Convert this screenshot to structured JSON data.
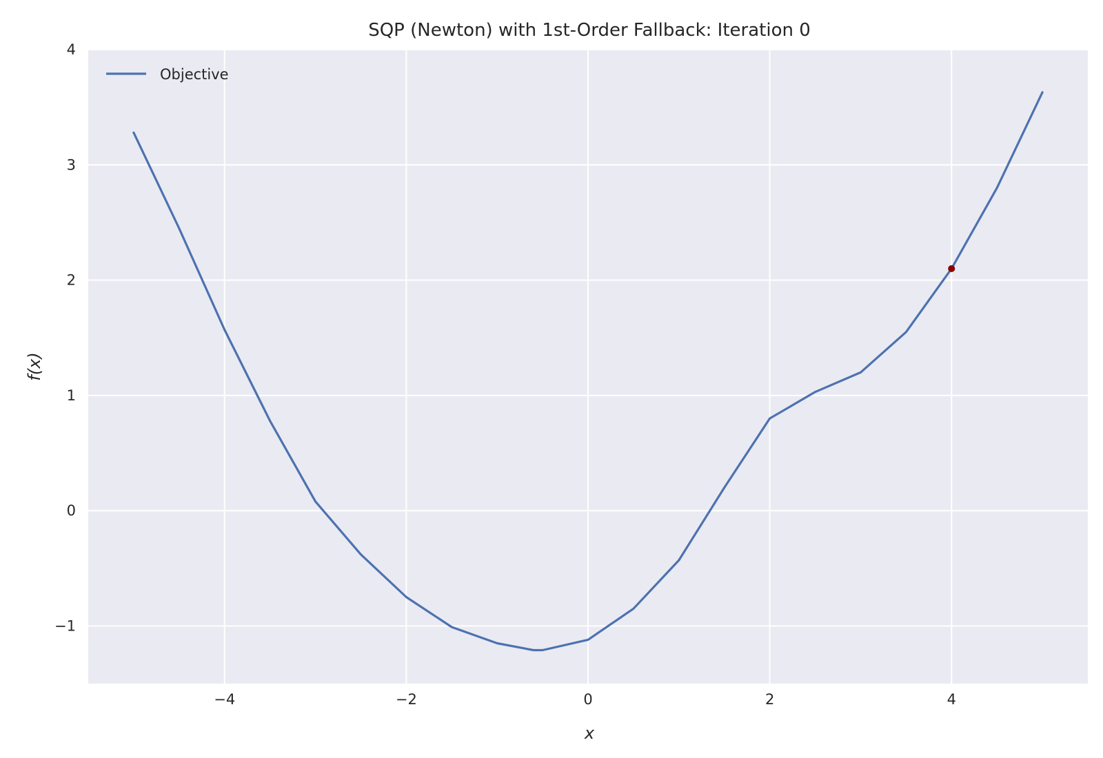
{
  "chart_data": {
    "type": "line",
    "title": "SQP (Newton) with 1st-Order Fallback: Iteration 0",
    "xlabel": "x",
    "ylabel": "f(x)",
    "xlim": [
      -5.5,
      5.5
    ],
    "ylim": [
      -1.5,
      4.0
    ],
    "xticks": [
      -4,
      -2,
      0,
      2,
      4
    ],
    "xtick_labels": [
      "−4",
      "−2",
      "0",
      "2",
      "4"
    ],
    "yticks": [
      -1,
      0,
      1,
      2,
      3,
      4
    ],
    "ytick_labels": [
      "−1",
      "0",
      "1",
      "2",
      "3",
      "4"
    ],
    "grid": true,
    "legend": {
      "placement": "top-left",
      "entries": [
        "Objective"
      ]
    },
    "series": [
      {
        "name": "Objective",
        "color": "#4c72b0",
        "x": [
          -5.0,
          -4.5,
          -4.0,
          -3.5,
          -3.0,
          -2.5,
          -2.0,
          -1.5,
          -1.0,
          -0.6,
          -0.5,
          0.0,
          0.5,
          1.0,
          1.5,
          2.0,
          2.5,
          3.0,
          3.5,
          4.0,
          4.5,
          5.0
        ],
        "y": [
          3.28,
          2.45,
          1.57,
          0.78,
          0.08,
          -0.38,
          -0.75,
          -1.01,
          -1.15,
          -1.21,
          -1.21,
          -1.12,
          -0.85,
          -0.43,
          0.2,
          0.8,
          1.03,
          1.2,
          1.55,
          2.1,
          2.8,
          3.63
        ]
      }
    ],
    "markers": [
      {
        "x": 4.0,
        "y": 2.1,
        "color": "#8b0000"
      }
    ]
  },
  "colors": {
    "plot_background": "#eaeaf2",
    "grid": "#ffffff",
    "line": "#4c72b0",
    "marker": "#8b0000"
  }
}
